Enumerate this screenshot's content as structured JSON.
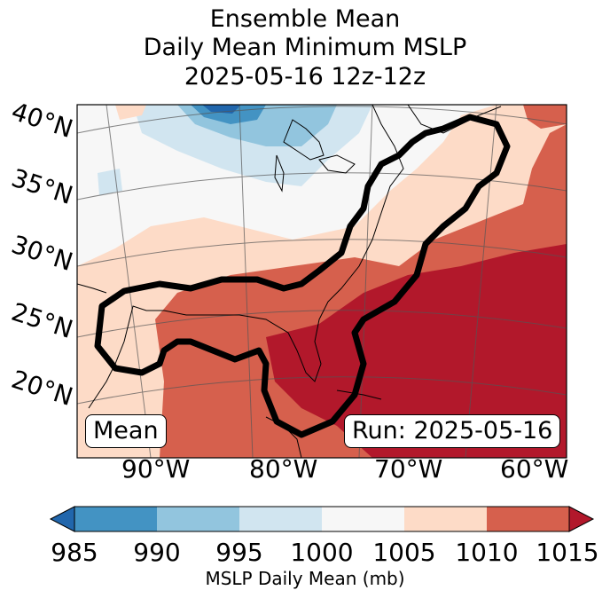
{
  "title": {
    "line1": "Ensemble Mean",
    "line2": "Daily Mean Minimum MSLP",
    "line3": "2025-05-16 12z-12z"
  },
  "map": {
    "lat_labels": [
      "40°N",
      "35°N",
      "30°N",
      "25°N",
      "20°N"
    ],
    "lon_labels": [
      "90°W",
      "80°W",
      "70°W",
      "60°W"
    ],
    "mean_label": "Mean",
    "run_label": "Run: 2025-05-16"
  },
  "colorbar": {
    "ticks": [
      "985",
      "990",
      "995",
      "1000",
      "1005",
      "1010",
      "1015"
    ],
    "label": "MSLP Daily Mean (mb)",
    "colors": [
      "#2166ac",
      "#4393c3",
      "#92c5de",
      "#d1e5f0",
      "#f7f7f7",
      "#fddbc7",
      "#d6604d",
      "#b2182b"
    ]
  }
}
